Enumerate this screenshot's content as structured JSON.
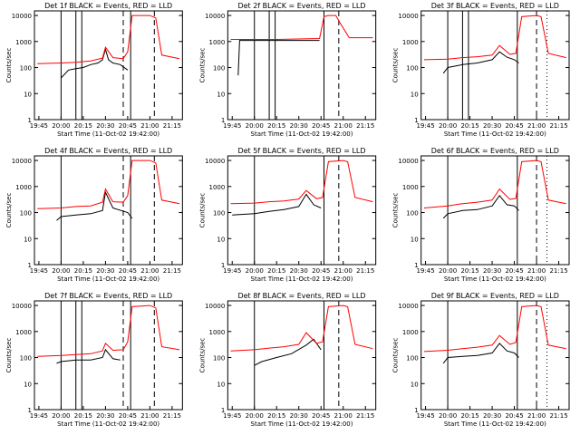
{
  "figure": {
    "rows": 3,
    "cols": 3
  },
  "colors": {
    "events": "#000000",
    "lld": "#ff0000",
    "axis": "#000000",
    "background": "#ffffff"
  },
  "common": {
    "xlabel": "Start Time (11-Oct-02 19:42:00)",
    "ylabel": "Counts/sec",
    "xticks": [
      "19:45",
      "20:00",
      "20:15",
      "20:30",
      "20:45",
      "21:00",
      "21:15"
    ],
    "yticks": [
      "1",
      "10",
      "100",
      "1000",
      "10000"
    ],
    "xlim": [
      "19:42",
      "21:22"
    ],
    "ylim": [
      1,
      15000
    ],
    "yscale": "log"
  },
  "chart_data": [
    {
      "type": "line",
      "title": "Det 1f BLACK = Events, RED = LLD",
      "series": [
        {
          "name": "Events",
          "color": "#000000",
          "x": [
            "20:00",
            "20:05",
            "20:10",
            "20:15",
            "20:20",
            "20:25",
            "20:28",
            "20:30",
            "20:32",
            "20:35",
            "20:40",
            "20:45"
          ],
          "values": [
            40,
            80,
            90,
            100,
            130,
            150,
            200,
            500,
            200,
            150,
            130,
            80
          ]
        },
        {
          "name": "LLD",
          "color": "#ff0000",
          "x": [
            "19:44",
            "20:00",
            "20:10",
            "20:20",
            "20:28",
            "20:30",
            "20:35",
            "20:42",
            "20:45",
            "20:48",
            "21:00",
            "21:04",
            "21:08",
            "21:20"
          ],
          "values": [
            140,
            150,
            160,
            180,
            230,
            600,
            240,
            220,
            400,
            10000,
            10000,
            8000,
            300,
            220
          ]
        }
      ],
      "vlines_solid": [
        "20:00",
        "20:10",
        "20:14",
        "20:47"
      ],
      "vlines_dashed": [
        "20:42",
        "21:03"
      ],
      "vlines_dotted": []
    },
    {
      "type": "line",
      "title": "Det 2f BLACK = Events, RED = LLD",
      "series": [
        {
          "name": "Events",
          "color": "#000000",
          "x": [
            "19:49",
            "19:50",
            "20:00",
            "20:15",
            "20:30",
            "20:44"
          ],
          "values": [
            50,
            1100,
            1100,
            1100,
            1100,
            1100
          ]
        },
        {
          "name": "LLD",
          "color": "#ff0000",
          "x": [
            "19:44",
            "20:00",
            "20:15",
            "20:30",
            "20:44",
            "20:47",
            "20:50",
            "20:55",
            "20:58",
            "21:04",
            "21:20"
          ],
          "values": [
            1200,
            1200,
            1200,
            1250,
            1300,
            9000,
            10000,
            10000,
            5000,
            1400,
            1400
          ]
        }
      ],
      "vlines_solid": [
        "20:00",
        "20:10",
        "20:14",
        "20:47"
      ],
      "vlines_dashed": [
        "20:57"
      ],
      "vlines_dotted": []
    },
    {
      "type": "line",
      "title": "Det 3f BLACK = Events, RED = LLD",
      "series": [
        {
          "name": "Events",
          "color": "#000000",
          "x": [
            "19:57",
            "20:00",
            "20:10",
            "20:20",
            "20:30",
            "20:35",
            "20:40",
            "20:45",
            "20:48"
          ],
          "values": [
            60,
            100,
            130,
            150,
            200,
            400,
            250,
            200,
            150
          ]
        },
        {
          "name": "LLD",
          "color": "#ff0000",
          "x": [
            "19:44",
            "20:00",
            "20:10",
            "20:20",
            "20:30",
            "20:35",
            "20:42",
            "20:46",
            "20:50",
            "21:00",
            "21:03",
            "21:08",
            "21:20"
          ],
          "values": [
            200,
            210,
            240,
            260,
            300,
            700,
            320,
            350,
            9000,
            10000,
            9000,
            350,
            240
          ]
        }
      ],
      "vlines_solid": [
        "20:00",
        "20:10",
        "20:14",
        "20:47"
      ],
      "vlines_dashed": [
        "21:00"
      ],
      "vlines_dotted": [
        "21:07"
      ]
    },
    {
      "type": "line",
      "title": "Det 4f BLACK = Events, RED = LLD",
      "series": [
        {
          "name": "Events",
          "color": "#000000",
          "x": [
            "19:57",
            "20:00",
            "20:10",
            "20:20",
            "20:28",
            "20:30",
            "20:35",
            "20:45",
            "20:48"
          ],
          "values": [
            50,
            70,
            80,
            90,
            120,
            600,
            150,
            100,
            60
          ]
        },
        {
          "name": "LLD",
          "color": "#ff0000",
          "x": [
            "19:44",
            "20:00",
            "20:10",
            "20:20",
            "20:28",
            "20:30",
            "20:35",
            "20:42",
            "20:45",
            "20:48",
            "21:00",
            "21:04",
            "21:08",
            "21:20"
          ],
          "values": [
            140,
            150,
            170,
            180,
            250,
            800,
            260,
            250,
            450,
            10000,
            10000,
            8000,
            300,
            220
          ]
        }
      ],
      "vlines_solid": [
        "20:00",
        "20:47"
      ],
      "vlines_dashed": [
        "20:42",
        "21:03"
      ],
      "vlines_dotted": []
    },
    {
      "type": "line",
      "title": "Det 5f BLACK = Events, RED = LLD",
      "series": [
        {
          "name": "Events",
          "color": "#000000",
          "x": [
            "19:45",
            "20:00",
            "20:10",
            "20:20",
            "20:30",
            "20:35",
            "20:40",
            "20:45"
          ],
          "values": [
            80,
            90,
            110,
            130,
            170,
            500,
            200,
            150
          ]
        },
        {
          "name": "LLD",
          "color": "#ff0000",
          "x": [
            "19:44",
            "20:00",
            "20:10",
            "20:20",
            "20:30",
            "20:35",
            "20:42",
            "20:46",
            "20:50",
            "21:00",
            "21:03",
            "21:08",
            "21:20"
          ],
          "values": [
            220,
            230,
            260,
            280,
            330,
            700,
            340,
            380,
            9000,
            10000,
            9000,
            380,
            260
          ]
        }
      ],
      "vlines_solid": [
        "20:00",
        "20:47"
      ],
      "vlines_dashed": [
        "20:57"
      ],
      "vlines_dotted": []
    },
    {
      "type": "line",
      "title": "Det 6f BLACK = Events, RED = LLD",
      "series": [
        {
          "name": "Events",
          "color": "#000000",
          "x": [
            "19:57",
            "20:00",
            "20:10",
            "20:20",
            "20:30",
            "20:35",
            "20:40",
            "20:45",
            "20:48"
          ],
          "values": [
            60,
            90,
            120,
            130,
            180,
            450,
            200,
            180,
            120
          ]
        },
        {
          "name": "LLD",
          "color": "#ff0000",
          "x": [
            "19:44",
            "20:00",
            "20:10",
            "20:20",
            "20:30",
            "20:35",
            "20:42",
            "20:46",
            "20:50",
            "21:00",
            "21:03",
            "21:08",
            "21:20"
          ],
          "values": [
            150,
            180,
            220,
            250,
            300,
            800,
            320,
            350,
            9000,
            10000,
            9000,
            300,
            220
          ]
        }
      ],
      "vlines_solid": [
        "20:00",
        "20:47"
      ],
      "vlines_dashed": [
        "21:00"
      ],
      "vlines_dotted": [
        "21:07"
      ]
    },
    {
      "type": "line",
      "title": "Det 7f BLACK = Events, RED = LLD",
      "series": [
        {
          "name": "Events",
          "color": "#000000",
          "x": [
            "19:57",
            "20:00",
            "20:10",
            "20:20",
            "20:28",
            "20:30",
            "20:35",
            "20:40"
          ],
          "values": [
            60,
            70,
            80,
            80,
            100,
            200,
            90,
            80
          ]
        },
        {
          "name": "LLD",
          "color": "#ff0000",
          "x": [
            "19:44",
            "20:00",
            "20:10",
            "20:20",
            "20:28",
            "20:30",
            "20:35",
            "20:42",
            "20:45",
            "20:48",
            "21:00",
            "21:04",
            "21:08",
            "21:20"
          ],
          "values": [
            110,
            120,
            130,
            140,
            180,
            350,
            190,
            200,
            400,
            9000,
            10000,
            8000,
            260,
            200
          ]
        }
      ],
      "vlines_solid": [
        "20:00",
        "20:10",
        "20:14",
        "20:47"
      ],
      "vlines_dashed": [
        "20:42",
        "21:03"
      ],
      "vlines_dotted": []
    },
    {
      "type": "line",
      "title": "Det 8f BLACK = Events, RED = LLD",
      "series": [
        {
          "name": "Events",
          "color": "#000000",
          "x": [
            "20:00",
            "20:05",
            "20:15",
            "20:25",
            "20:35",
            "20:40",
            "20:45"
          ],
          "values": [
            50,
            70,
            100,
            140,
            300,
            500,
            200
          ]
        },
        {
          "name": "LLD",
          "color": "#ff0000",
          "x": [
            "19:44",
            "20:00",
            "20:10",
            "20:20",
            "20:30",
            "20:35",
            "20:42",
            "20:46",
            "20:50",
            "21:00",
            "21:03",
            "21:08",
            "21:20"
          ],
          "values": [
            180,
            200,
            230,
            260,
            320,
            900,
            350,
            400,
            9000,
            10000,
            9000,
            320,
            220
          ]
        }
      ],
      "vlines_solid": [
        "20:00",
        "20:47"
      ],
      "vlines_dashed": [
        "20:57"
      ],
      "vlines_dotted": []
    },
    {
      "type": "line",
      "title": "Det 9f BLACK = Events, RED = LLD",
      "series": [
        {
          "name": "Events",
          "color": "#000000",
          "x": [
            "19:57",
            "20:00",
            "20:10",
            "20:20",
            "20:30",
            "20:35",
            "20:40",
            "20:45",
            "20:48"
          ],
          "values": [
            60,
            100,
            110,
            120,
            150,
            350,
            180,
            150,
            100
          ]
        },
        {
          "name": "LLD",
          "color": "#ff0000",
          "x": [
            "19:44",
            "20:00",
            "20:10",
            "20:20",
            "20:30",
            "20:35",
            "20:42",
            "20:46",
            "20:50",
            "21:00",
            "21:03",
            "21:08",
            "21:20"
          ],
          "values": [
            170,
            190,
            220,
            250,
            300,
            700,
            320,
            380,
            9000,
            10000,
            9000,
            300,
            220
          ]
        }
      ],
      "vlines_solid": [
        "20:00",
        "20:47"
      ],
      "vlines_dashed": [
        "21:00"
      ],
      "vlines_dotted": [
        "21:07"
      ]
    }
  ]
}
